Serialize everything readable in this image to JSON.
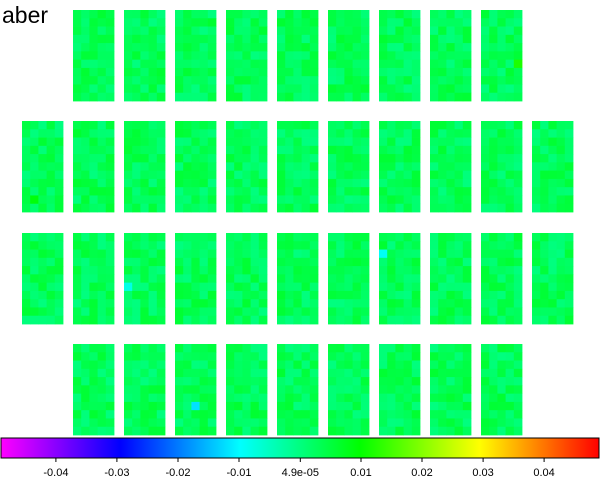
{
  "chart_data": {
    "type": "heatmap",
    "title": "aber",
    "layout_rows": [
      9,
      11,
      11,
      9
    ],
    "cell_grid": {
      "cols": 5,
      "rows": 11
    },
    "base_value": 0.003,
    "noise_amplitude": 0.003,
    "outlier_cells": [
      {
        "row": 2,
        "panel": 2,
        "col": 0,
        "cellrow": 6,
        "value": -0.008
      },
      {
        "row": 2,
        "panel": 7,
        "col": 0,
        "cellrow": 2,
        "value": -0.009
      },
      {
        "row": 3,
        "panel": 2,
        "col": 2,
        "cellrow": 7,
        "value": -0.012
      },
      {
        "row": 0,
        "panel": 8,
        "col": 4,
        "cellrow": 6,
        "value": 0.012
      },
      {
        "row": 1,
        "panel": 0,
        "col": 1,
        "cellrow": 9,
        "value": 0.009
      }
    ],
    "colorbar": {
      "min": -0.049,
      "max": 0.049,
      "colors": [
        "#ff00ff",
        "#7f00ff",
        "#0000ff",
        "#007fff",
        "#00ffff",
        "#00ff7f",
        "#00ff00",
        "#7fff00",
        "#ffff00",
        "#ff7f00",
        "#ff0000"
      ],
      "ticks": [
        {
          "value": -0.04,
          "label": "-0.04"
        },
        {
          "value": -0.03,
          "label": "-0.03"
        },
        {
          "value": -0.02,
          "label": "-0.02"
        },
        {
          "value": -0.01,
          "label": "-0.01"
        },
        {
          "value": 4.9e-05,
          "label": "4.9e-05"
        },
        {
          "value": 0.01,
          "label": "0.01"
        },
        {
          "value": 0.02,
          "label": "0.02"
        },
        {
          "value": 0.03,
          "label": "0.03"
        },
        {
          "value": 0.04,
          "label": "0.04"
        }
      ]
    }
  }
}
